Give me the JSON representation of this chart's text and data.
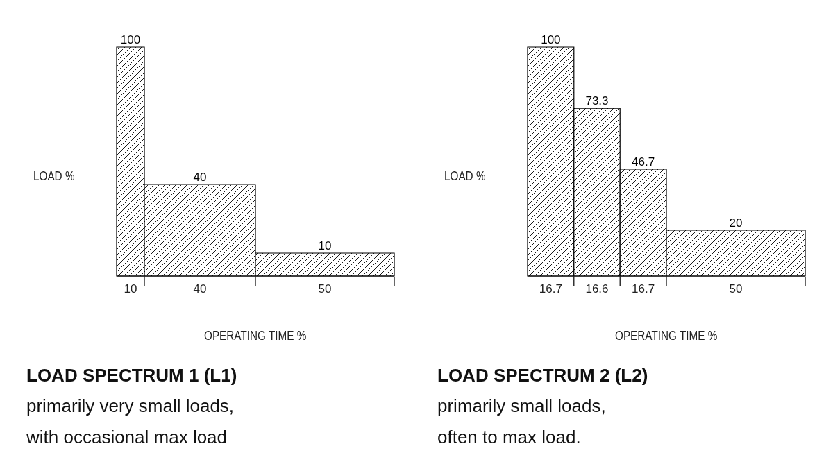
{
  "chart_data": [
    {
      "type": "bar",
      "title": "LOAD SPECTRUM 1 (L1)",
      "subtitle": "primarily very small loads,\nwith occasional max load",
      "xlabel": "OPERATING TIME %",
      "ylabel": "LOAD %",
      "categories": [
        "10",
        "40",
        "50"
      ],
      "values": [
        100,
        40,
        10
      ],
      "color": "#000000",
      "data_labels": true,
      "ylim": [
        0,
        100
      ],
      "tick_labels": "x"
    },
    {
      "type": "bar",
      "title": "LOAD SPECTRUM 2 (L2)",
      "subtitle": "primarily small loads,\noften to max load.",
      "xlabel": "OPERATING TIME %",
      "ylabel": "LOAD %",
      "categories": [
        "16.7",
        "16.6",
        "16.7",
        "50"
      ],
      "values": [
        100,
        73.3,
        46.7,
        20
      ],
      "color": "#000000",
      "data_labels": true,
      "ylim": [
        0,
        100
      ],
      "tick_labels": "x"
    }
  ]
}
